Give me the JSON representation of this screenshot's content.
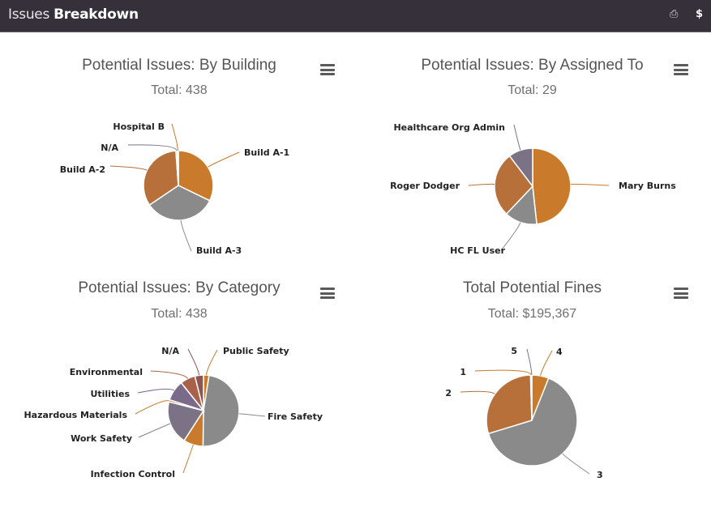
{
  "header": {
    "title_light": "Issues",
    "title_bold": "Breakdown",
    "print_icon": "print-icon",
    "dollar_icon": "$"
  },
  "chart_data": [
    {
      "type": "pie",
      "title": "Potential Issues: By Building",
      "subtitle": "Total: 438",
      "categories": [
        "Build A-1",
        "Build A-3",
        "Build A-2",
        "N/A",
        "Hospital B"
      ],
      "values": [
        141,
        146,
        146,
        3,
        2
      ],
      "colors": [
        "#c97a2b",
        "#8a8a8a",
        "#b8703a",
        "#7c7285",
        "#c97a2b"
      ]
    },
    {
      "type": "pie",
      "title": "Potential Issues: By Assigned To",
      "subtitle": "Total: 29",
      "categories": [
        "Mary Burns",
        "HC FL User",
        "Roger Dodger",
        "Healthcare Org Admin"
      ],
      "values": [
        14,
        4,
        8,
        3
      ],
      "colors": [
        "#c97a2b",
        "#8a8a8a",
        "#b8703a",
        "#7c7285"
      ]
    },
    {
      "type": "pie",
      "title": "Potential Issues: By Category",
      "subtitle": "Total: 438",
      "categories": [
        "Public Safety",
        "Fire Safety",
        "Infection Control",
        "Work Safety",
        "Hazardous Materials",
        "Utilities",
        "Environmental",
        "N/A"
      ],
      "values": [
        11,
        209,
        39,
        87,
        4,
        41,
        30,
        17
      ],
      "colors": [
        "#c97a2b",
        "#8a8a8a",
        "#c97a2b",
        "#7c7285",
        "#c97a2b",
        "#7c6a8a",
        "#a8624a",
        "#8f5550"
      ]
    },
    {
      "type": "pie",
      "title": "Total Potential Fines",
      "subtitle": "Total: $195,367",
      "categories": [
        "4",
        "3",
        "2",
        "1",
        "5"
      ],
      "values": [
        11800,
        125500,
        57200,
        700,
        167
      ],
      "colors": [
        "#c97a2b",
        "#8a8a8a",
        "#b8703a",
        "#c97a2b",
        "#7c7285"
      ]
    }
  ]
}
